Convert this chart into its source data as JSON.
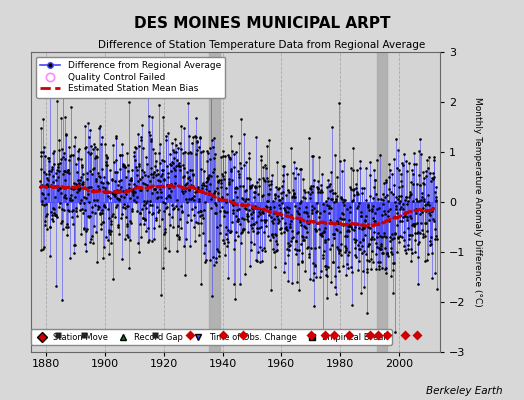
{
  "title": "DES MOINES MUNICIPAL ARPT",
  "subtitle": "Difference of Station Temperature Data from Regional Average",
  "ylabel": "Monthly Temperature Anomaly Difference (°C)",
  "xlabel_note": "Berkeley Earth",
  "xlim": [
    1875,
    2014
  ],
  "ylim": [
    -3,
    3
  ],
  "yticks": [
    -3,
    -2,
    -1,
    0,
    1,
    2,
    3
  ],
  "xticks": [
    1880,
    1900,
    1920,
    1940,
    1960,
    1980,
    2000
  ],
  "bg_color": "#d8d8d8",
  "plot_bg": "#d0d0d0",
  "line_color": "#4444ff",
  "dot_color": "#000000",
  "bias_color": "#cc0000",
  "station_move_color": "#cc0000",
  "empirical_break_color": "#222222",
  "time_obs_color": "#4444ff",
  "record_gap_color": "#008800",
  "station_moves": [
    1929,
    1940,
    1947,
    1970,
    1975,
    1978,
    1983,
    1990,
    1993,
    1996,
    2002,
    2006
  ],
  "empirical_breaks": [
    1884,
    1893,
    1917
  ],
  "time_obs_changes": [],
  "record_gaps": [
    1936,
    1993
  ],
  "seed": 17,
  "start_year": 1878,
  "end_year": 2013
}
